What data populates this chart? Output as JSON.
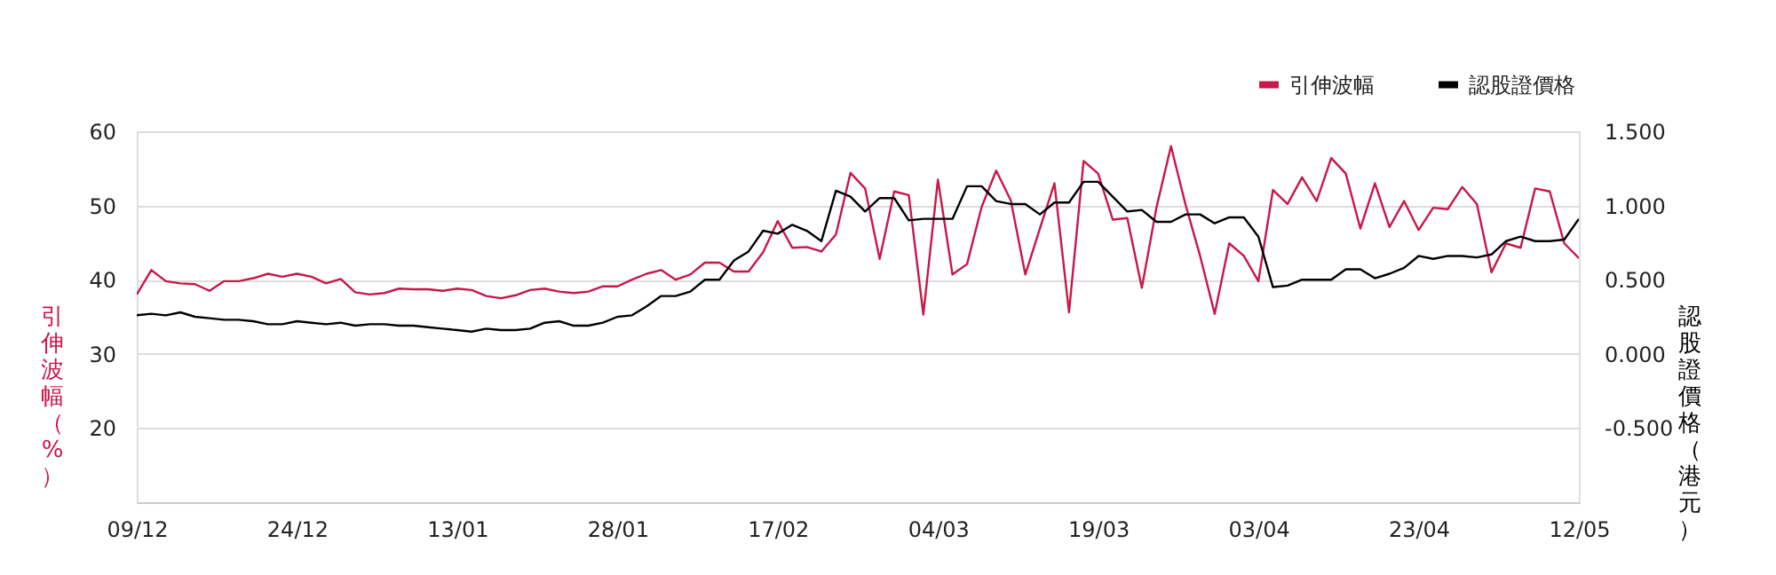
{
  "chart_data": {
    "type": "line",
    "categories": [
      "09/12",
      null,
      null,
      null,
      null,
      null,
      null,
      null,
      null,
      null,
      null,
      "24/12",
      null,
      null,
      null,
      null,
      null,
      null,
      null,
      null,
      null,
      null,
      "13/01",
      null,
      null,
      null,
      null,
      null,
      null,
      null,
      null,
      null,
      null,
      "28/01",
      null,
      null,
      null,
      null,
      null,
      null,
      null,
      null,
      null,
      null,
      "17/02",
      null,
      null,
      null,
      null,
      null,
      null,
      null,
      null,
      null,
      null,
      "04/03",
      null,
      null,
      null,
      null,
      null,
      null,
      null,
      null,
      null,
      null,
      "19/03",
      null,
      null,
      null,
      null,
      null,
      null,
      null,
      null,
      null,
      null,
      "03/04",
      null,
      null,
      null,
      null,
      null,
      null,
      null,
      null,
      null,
      null,
      "23/04",
      null,
      null,
      null,
      null,
      null,
      null,
      null,
      null,
      null,
      null,
      "12/05"
    ],
    "series": [
      {
        "name": "引伸波幅",
        "color": "#c8174a",
        "values": [
          38.0,
          41.3,
          39.8,
          39.5,
          39.4,
          38.5,
          39.8,
          39.8,
          40.2,
          40.8,
          40.4,
          40.8,
          40.4,
          39.5,
          40.1,
          38.3,
          38.0,
          38.2,
          38.8,
          38.7,
          38.7,
          38.5,
          38.8,
          38.6,
          37.8,
          37.5,
          37.9,
          38.6,
          38.8,
          38.4,
          38.2,
          38.4,
          39.1,
          39.1,
          40.0,
          40.8,
          41.3,
          40.0,
          40.7,
          42.3,
          42.3,
          41.1,
          41.1,
          43.7,
          47.9,
          44.3,
          44.4,
          43.8,
          46.1,
          54.4,
          52.3,
          42.8,
          51.9,
          51.4,
          35.3,
          53.5,
          40.7,
          42.1,
          49.8,
          54.7,
          50.7,
          40.7,
          46.9,
          53.0,
          35.6,
          56.0,
          54.3,
          48.1,
          48.3,
          38.9,
          49.7,
          58.0,
          50.1,
          43.2,
          35.4,
          44.9,
          43.2,
          39.8,
          52.1,
          50.2,
          53.8,
          50.6,
          56.4,
          54.3,
          46.9,
          53.0,
          47.1,
          50.6,
          46.7,
          49.7,
          49.5,
          52.5,
          50.2,
          41.0,
          44.9,
          44.3,
          52.3,
          51.9,
          44.9,
          42.9
        ]
      },
      {
        "name": "認股證價格",
        "color": "#000000",
        "axis": "y2",
        "values": [
          0.26,
          0.27,
          0.26,
          0.28,
          0.25,
          0.24,
          0.23,
          0.23,
          0.22,
          0.2,
          0.2,
          0.22,
          0.21,
          0.2,
          0.21,
          0.19,
          0.2,
          0.2,
          0.19,
          0.19,
          0.18,
          0.17,
          0.16,
          0.15,
          0.17,
          0.16,
          0.16,
          0.17,
          0.21,
          0.22,
          0.19,
          0.19,
          0.21,
          0.25,
          0.26,
          0.32,
          0.39,
          0.39,
          0.42,
          0.5,
          0.5,
          0.63,
          0.69,
          0.83,
          0.81,
          0.87,
          0.83,
          0.76,
          1.1,
          1.06,
          0.96,
          1.05,
          1.05,
          0.9,
          0.91,
          0.91,
          0.91,
          1.13,
          1.13,
          1.03,
          1.01,
          1.01,
          0.94,
          1.02,
          1.02,
          1.16,
          1.16,
          1.06,
          0.96,
          0.97,
          0.89,
          0.89,
          0.94,
          0.94,
          0.88,
          0.92,
          0.92,
          0.79,
          0.45,
          0.46,
          0.5,
          0.5,
          0.5,
          0.57,
          0.57,
          0.51,
          0.54,
          0.58,
          0.66,
          0.64,
          0.66,
          0.66,
          0.65,
          0.67,
          0.76,
          0.79,
          0.76,
          0.76,
          0.77,
          0.91
        ]
      }
    ],
    "ylabel": "引伸波幅（%）",
    "y2label": "認股證價格（港元）",
    "ylim": [
      10,
      60
    ],
    "yticks": [
      20,
      30,
      40,
      50,
      60
    ],
    "y2lim": [
      -1.0,
      1.5
    ],
    "y2ticks": [
      {
        "value": -0.5,
        "label": "-0.500"
      },
      {
        "value": 0,
        "label": "0.000"
      },
      {
        "value": 0.5,
        "label": "0.500"
      },
      {
        "value": 1.0,
        "label": "1.000"
      },
      {
        "value": 1.5,
        "label": "1.500"
      }
    ],
    "grid": "y",
    "legend": "top right",
    "marker": "none",
    "line_style": "solid"
  }
}
